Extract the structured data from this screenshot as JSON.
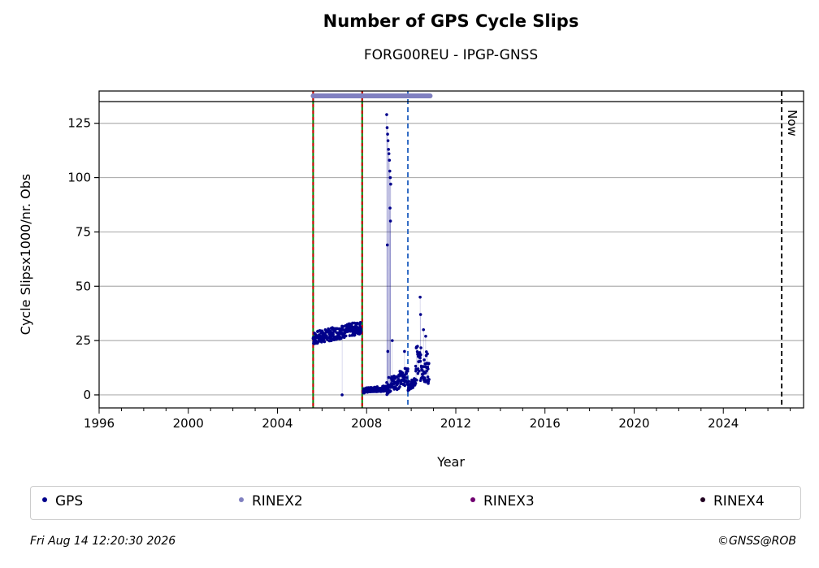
{
  "header": {
    "title": "Number of GPS Cycle Slips",
    "subtitle": "FORG00REU - IPGP-GNSS"
  },
  "footer": {
    "timestamp": "Fri Aug 14 12:20:30 2026",
    "copyright": "©GNSS@ROB"
  },
  "legend": {
    "items": [
      {
        "label": "GPS",
        "color": "#00008b"
      },
      {
        "label": "RINEX2",
        "color": "#8080c0"
      },
      {
        "label": "RINEX3",
        "color": "#700070"
      },
      {
        "label": "RINEX4",
        "color": "#200020"
      }
    ]
  },
  "chart_data": {
    "type": "scatter",
    "title": "Number of GPS Cycle Slips",
    "subtitle": "FORG00REU - IPGP-GNSS",
    "xlabel": "Year",
    "ylabel": "Cycle Slipsx1000/nr. Obs",
    "xlim": [
      1996,
      2027.6
    ],
    "ylim": [
      -6,
      135
    ],
    "x_ticks": [
      1996,
      2000,
      2004,
      2008,
      2012,
      2016,
      2020,
      2024
    ],
    "y_ticks": [
      0,
      25,
      50,
      75,
      100,
      125
    ],
    "grid": "horizontal",
    "legend_position": "bottom",
    "vertical_markers": [
      {
        "x": 2005.6,
        "style": "dashed",
        "colors": [
          "#008000",
          "#cc0000"
        ]
      },
      {
        "x": 2007.8,
        "style": "dashed",
        "colors": [
          "#008000",
          "#cc0000"
        ]
      },
      {
        "x": 2009.85,
        "style": "dashed",
        "colors": [
          "#1f5fbf"
        ]
      },
      {
        "x": 2026.62,
        "style": "dashed",
        "colors": [
          "#000000"
        ],
        "label": "Now"
      }
    ],
    "rinex2_coverage": {
      "start": 2005.6,
      "end": 2010.85
    },
    "series": [
      {
        "name": "GPS",
        "color": "#00008b",
        "segments": [
          {
            "x_start": 2005.6,
            "x_end": 2007.75,
            "y_start": 26,
            "y_end": 31,
            "spread": 3
          },
          {
            "x_start": 2007.85,
            "x_end": 2008.9,
            "y_start": 2,
            "y_end": 3,
            "spread": 1.2
          },
          {
            "x_start": 2008.9,
            "x_end": 2009.85,
            "y_start": 4,
            "y_end": 9,
            "spread": 4
          },
          {
            "x_start": 2009.85,
            "x_end": 2010.2,
            "y_start": 4,
            "y_end": 6,
            "spread": 2
          },
          {
            "x_start": 2010.2,
            "x_end": 2010.8,
            "y_start": 15,
            "y_end": 12,
            "spread": 8
          }
        ],
        "points": [
          {
            "x": 2006.9,
            "y": 0
          },
          {
            "x": 2008.9,
            "y": 129
          },
          {
            "x": 2008.92,
            "y": 123
          },
          {
            "x": 2008.94,
            "y": 120
          },
          {
            "x": 2008.96,
            "y": 117
          },
          {
            "x": 2008.98,
            "y": 113
          },
          {
            "x": 2009.0,
            "y": 111
          },
          {
            "x": 2009.02,
            "y": 108
          },
          {
            "x": 2009.04,
            "y": 103
          },
          {
            "x": 2009.06,
            "y": 100
          },
          {
            "x": 2009.08,
            "y": 97
          },
          {
            "x": 2009.05,
            "y": 86
          },
          {
            "x": 2009.07,
            "y": 80
          },
          {
            "x": 2008.93,
            "y": 69
          },
          {
            "x": 2010.4,
            "y": 45
          },
          {
            "x": 2010.42,
            "y": 37
          },
          {
            "x": 2009.15,
            "y": 25
          },
          {
            "x": 2008.95,
            "y": 20
          },
          {
            "x": 2009.7,
            "y": 20
          },
          {
            "x": 2010.55,
            "y": 30
          },
          {
            "x": 2010.65,
            "y": 27
          }
        ]
      }
    ]
  }
}
